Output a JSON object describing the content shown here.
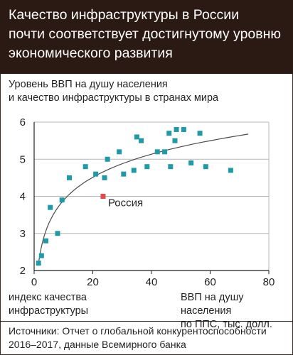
{
  "header": {
    "title": "Качество инфраструктуры в России\nпочти соответствует достигнутому уровню\nэкономического развития"
  },
  "subtitle": "Уровень ВВП на душу населения\nи качество инфраструктуры в странах мира",
  "footer": {
    "source": "Источники: Отчет о глобальной конкурентоспособности\n2016–2017, данные Всемирного банка"
  },
  "colors": {
    "header_bg": "#2b1a13",
    "points": "#1f9aa6",
    "highlight": "#e8474c",
    "trend": "#4a4a4a",
    "grid": "#b5b5b5"
  },
  "chart_data": {
    "type": "scatter",
    "xlabel": "ВВП на душу населения\nпо ППС, тыс. долл.",
    "ylabel": "индекс качества\nинфраструктуры",
    "xlim": [
      0,
      80
    ],
    "ylim": [
      2,
      6
    ],
    "xticks": [
      0,
      20,
      40,
      60,
      80
    ],
    "yticks": [
      2,
      3,
      4,
      5,
      6
    ],
    "grid": "horizontal",
    "points": [
      {
        "x": 1.5,
        "y": 2.2
      },
      {
        "x": 2.5,
        "y": 2.4
      },
      {
        "x": 4,
        "y": 2.8
      },
      {
        "x": 5.5,
        "y": 3.7
      },
      {
        "x": 8,
        "y": 3
      },
      {
        "x": 9.5,
        "y": 3.9
      },
      {
        "x": 12,
        "y": 4.5
      },
      {
        "x": 17.5,
        "y": 4.8
      },
      {
        "x": 21,
        "y": 4.6
      },
      {
        "x": 24,
        "y": 4.5
      },
      {
        "x": 25,
        "y": 5
      },
      {
        "x": 29,
        "y": 5.2
      },
      {
        "x": 30.5,
        "y": 4.6
      },
      {
        "x": 34,
        "y": 4.7
      },
      {
        "x": 35,
        "y": 5.6
      },
      {
        "x": 36.5,
        "y": 5.5
      },
      {
        "x": 38.5,
        "y": 4.8
      },
      {
        "x": 42,
        "y": 5.2
      },
      {
        "x": 44.5,
        "y": 5.2
      },
      {
        "x": 46,
        "y": 5.7
      },
      {
        "x": 46.5,
        "y": 4.8
      },
      {
        "x": 48,
        "y": 5.5
      },
      {
        "x": 48.5,
        "y": 5.8
      },
      {
        "x": 51,
        "y": 5.8
      },
      {
        "x": 53.5,
        "y": 4.9
      },
      {
        "x": 56.5,
        "y": 5.7
      },
      {
        "x": 58.5,
        "y": 4.8
      },
      {
        "x": 67,
        "y": 4.7
      }
    ],
    "highlight": {
      "label": "Россия",
      "x": 23.5,
      "y": 4
    },
    "trendline": {
      "type": "logarithmic",
      "x_from": 1.5,
      "x_to": 73
    }
  }
}
